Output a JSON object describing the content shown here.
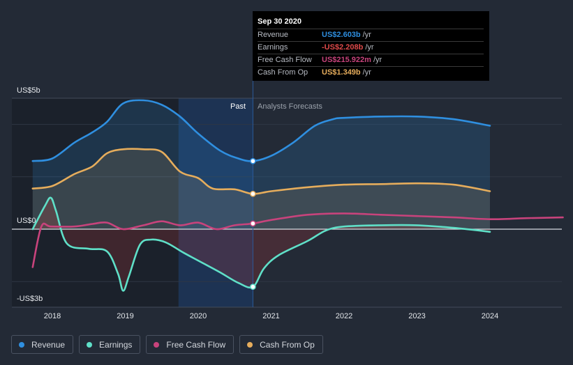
{
  "chart_data": {
    "type": "line",
    "x_ticks": [
      "2018",
      "2019",
      "2020",
      "2021",
      "2022",
      "2023",
      "2024"
    ],
    "y_labels": {
      "top": "US$5b",
      "zero": "US$0",
      "bottom": "-US$3b"
    },
    "ylim": [
      -3,
      5
    ],
    "region_labels": {
      "past": "Past",
      "forecast": "Analysts Forecasts"
    },
    "highlight_date": 2020.75,
    "series": [
      {
        "name": "Revenue",
        "color": "#2f8fe0",
        "points": [
          [
            2017.73,
            2.6
          ],
          [
            2018.0,
            2.7
          ],
          [
            2018.3,
            3.3
          ],
          [
            2018.55,
            3.7
          ],
          [
            2018.75,
            4.1
          ],
          [
            2018.97,
            4.8
          ],
          [
            2019.25,
            4.92
          ],
          [
            2019.5,
            4.75
          ],
          [
            2019.75,
            4.3
          ],
          [
            2020.0,
            3.65
          ],
          [
            2020.3,
            3.0
          ],
          [
            2020.55,
            2.7
          ],
          [
            2020.75,
            2.6
          ],
          [
            2021.0,
            2.8
          ],
          [
            2021.3,
            3.3
          ],
          [
            2021.6,
            3.95
          ],
          [
            2021.85,
            4.2
          ],
          [
            2022.0,
            4.25
          ],
          [
            2022.5,
            4.3
          ],
          [
            2023.0,
            4.3
          ],
          [
            2023.5,
            4.2
          ],
          [
            2024.0,
            3.95
          ]
        ]
      },
      {
        "name": "Earnings",
        "color": "#5fe0c8",
        "points": [
          [
            2017.73,
            0.0
          ],
          [
            2017.9,
            0.9
          ],
          [
            2017.98,
            1.2
          ],
          [
            2018.05,
            0.7
          ],
          [
            2018.2,
            -0.55
          ],
          [
            2018.5,
            -0.75
          ],
          [
            2018.75,
            -0.85
          ],
          [
            2018.9,
            -1.7
          ],
          [
            2018.97,
            -2.35
          ],
          [
            2019.05,
            -1.8
          ],
          [
            2019.2,
            -0.6
          ],
          [
            2019.35,
            -0.4
          ],
          [
            2019.55,
            -0.5
          ],
          [
            2019.8,
            -0.9
          ],
          [
            2020.0,
            -1.2
          ],
          [
            2020.3,
            -1.65
          ],
          [
            2020.55,
            -2.05
          ],
          [
            2020.75,
            -2.2
          ],
          [
            2020.9,
            -1.5
          ],
          [
            2021.1,
            -1.0
          ],
          [
            2021.5,
            -0.45
          ],
          [
            2021.75,
            -0.05
          ],
          [
            2022.0,
            0.1
          ],
          [
            2022.5,
            0.15
          ],
          [
            2023.0,
            0.15
          ],
          [
            2023.5,
            0.05
          ],
          [
            2024.0,
            -0.1
          ]
        ]
      },
      {
        "name": "Free Cash Flow",
        "color": "#c8437c",
        "points": [
          [
            2017.73,
            -1.45
          ],
          [
            2017.85,
            0.1
          ],
          [
            2017.98,
            0.1
          ],
          [
            2018.3,
            0.1
          ],
          [
            2018.55,
            0.2
          ],
          [
            2018.75,
            0.25
          ],
          [
            2018.97,
            0.0
          ],
          [
            2019.25,
            0.15
          ],
          [
            2019.5,
            0.3
          ],
          [
            2019.75,
            0.15
          ],
          [
            2020.0,
            0.25
          ],
          [
            2020.25,
            0.0
          ],
          [
            2020.5,
            0.15
          ],
          [
            2020.75,
            0.216
          ],
          [
            2021.0,
            0.35
          ],
          [
            2021.5,
            0.55
          ],
          [
            2022.0,
            0.6
          ],
          [
            2022.5,
            0.55
          ],
          [
            2023.0,
            0.5
          ],
          [
            2023.5,
            0.45
          ],
          [
            2024.0,
            0.38
          ],
          [
            2024.5,
            0.42
          ],
          [
            2025.0,
            0.45
          ]
        ]
      },
      {
        "name": "Cash From Op",
        "color": "#e6ad5c",
        "points": [
          [
            2017.73,
            1.55
          ],
          [
            2018.0,
            1.65
          ],
          [
            2018.3,
            2.1
          ],
          [
            2018.55,
            2.4
          ],
          [
            2018.75,
            2.9
          ],
          [
            2018.97,
            3.05
          ],
          [
            2019.25,
            3.05
          ],
          [
            2019.5,
            2.95
          ],
          [
            2019.75,
            2.2
          ],
          [
            2020.0,
            1.95
          ],
          [
            2020.2,
            1.55
          ],
          [
            2020.5,
            1.52
          ],
          [
            2020.75,
            1.349
          ],
          [
            2021.0,
            1.45
          ],
          [
            2021.5,
            1.6
          ],
          [
            2022.0,
            1.7
          ],
          [
            2022.5,
            1.72
          ],
          [
            2023.0,
            1.75
          ],
          [
            2023.5,
            1.7
          ],
          [
            2024.0,
            1.45
          ]
        ]
      }
    ]
  },
  "tooltip": {
    "date": "Sep 30 2020",
    "rows": [
      {
        "label": "Revenue",
        "value": "US$2.603b",
        "unit": "/yr",
        "color": "#2f8fe0"
      },
      {
        "label": "Earnings",
        "value": "-US$2.208b",
        "unit": "/yr",
        "color": "#e04a4a"
      },
      {
        "label": "Free Cash Flow",
        "value": "US$215.922m",
        "unit": "/yr",
        "color": "#c8437c"
      },
      {
        "label": "Cash From Op",
        "value": "US$1.349b",
        "unit": "/yr",
        "color": "#e6ad5c"
      }
    ]
  },
  "legend": [
    {
      "label": "Revenue",
      "color": "#2f8fe0"
    },
    {
      "label": "Earnings",
      "color": "#5fe0c8"
    },
    {
      "label": "Free Cash Flow",
      "color": "#c8437c"
    },
    {
      "label": "Cash From Op",
      "color": "#e6ad5c"
    }
  ]
}
